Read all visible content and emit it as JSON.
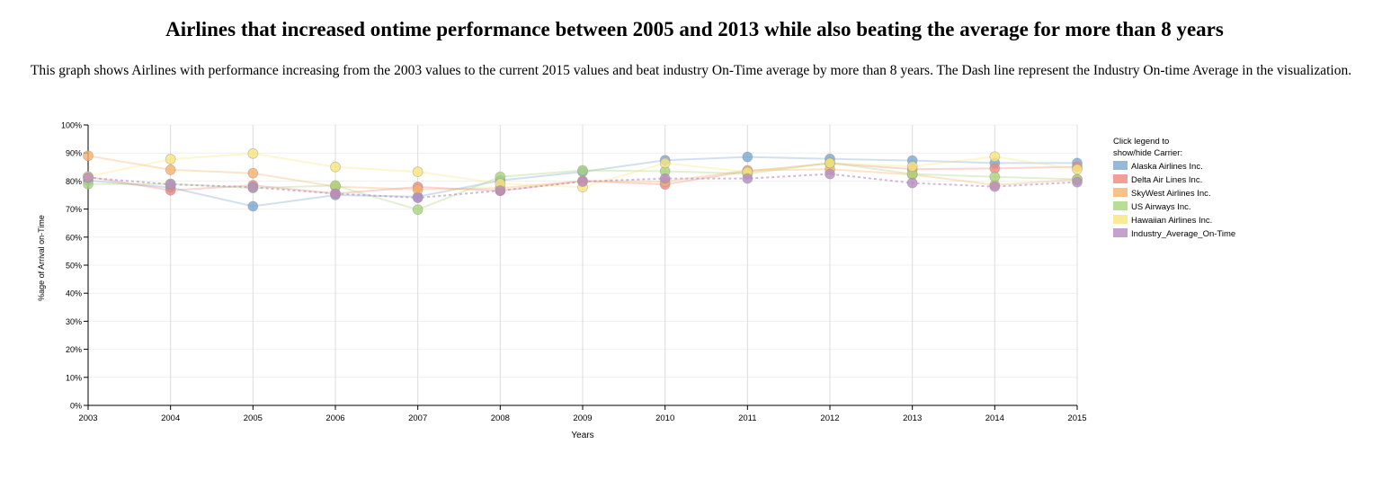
{
  "page": {
    "title": "Airlines that increased ontime performance between 2005 and 2013 while also beating the average for more than 8 years",
    "description": "This graph shows Airlines with performance increasing from the 2003 values to the current 2015 values and beat industry On-Time average by more than 8 years. The Dash line represent the Industry On-time Average in the visualization."
  },
  "chart_data": {
    "type": "line",
    "title": "",
    "xlabel": "Years",
    "ylabel": "%age of Arrival on-Time",
    "x": [
      2003,
      2004,
      2005,
      2006,
      2007,
      2008,
      2009,
      2010,
      2011,
      2012,
      2013,
      2014,
      2015
    ],
    "x_tick_labels": [
      "2003",
      "2004",
      "2005",
      "2006",
      "2007",
      "2008",
      "2009",
      "2010",
      "2011",
      "2012",
      "2013",
      "2014",
      "2015"
    ],
    "ylim": [
      0,
      100
    ],
    "y_ticks": [
      0,
      10,
      20,
      30,
      40,
      50,
      60,
      70,
      80,
      90,
      100
    ],
    "y_tick_labels": [
      "0%",
      "10%",
      "20%",
      "30%",
      "40%",
      "50%",
      "60%",
      "70%",
      "80%",
      "90%",
      "100%"
    ],
    "grid": true,
    "legend": {
      "title_line1": "Click legend to",
      "title_line2": "show/hide Carrier:",
      "placement": "right"
    },
    "series": [
      {
        "name": "Alaska Airlines Inc.",
        "color": "#7ba7d0",
        "dashed": false,
        "values": [
          80.2,
          77.7,
          71.0,
          75.0,
          74.4,
          80.2,
          83.3,
          87.4,
          88.6,
          87.9,
          87.3,
          86.4,
          86.4
        ]
      },
      {
        "name": "Delta Air Lines Inc.",
        "color": "#f0877e",
        "dashed": false,
        "values": [
          81.5,
          76.7,
          78.5,
          75.5,
          77.9,
          76.5,
          80.0,
          78.8,
          83.5,
          86.3,
          84.2,
          84.5,
          85.1
        ]
      },
      {
        "name": "SkyWest Airlines Inc.",
        "color": "#f6b26b",
        "dashed": false,
        "values": [
          89.0,
          84.0,
          82.8,
          78.0,
          77.0,
          77.5,
          80.0,
          79.8,
          83.8,
          84.2,
          82.3,
          78.6,
          80.5
        ]
      },
      {
        "name": "US Airways Inc.",
        "color": "#a9d57a",
        "dashed": false,
        "values": [
          78.9,
          79.0,
          77.5,
          78.4,
          69.8,
          81.5,
          83.8,
          83.5,
          82.6,
          86.5,
          82.5,
          81.5,
          80.6
        ]
      },
      {
        "name": "Hawaiian Airlines Inc.",
        "color": "#f7e57c",
        "dashed": false,
        "values": [
          81.6,
          87.8,
          89.8,
          85.0,
          83.3,
          79.1,
          77.8,
          86.4,
          83.2,
          86.4,
          85.2,
          88.7,
          84.2
        ]
      },
      {
        "name": "Industry_Average_On-Time",
        "color": "#b58bc0",
        "dashed": true,
        "values": [
          81.2,
          78.8,
          77.8,
          75.5,
          74.0,
          76.6,
          79.8,
          80.9,
          80.9,
          82.5,
          79.3,
          78.0,
          79.6
        ]
      }
    ]
  }
}
